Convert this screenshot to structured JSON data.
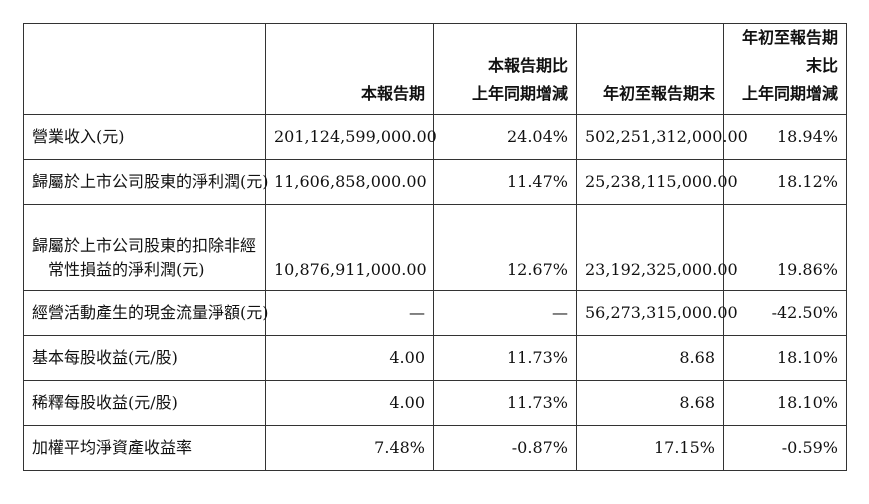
{
  "table": {
    "headers": [
      {
        "lines": [
          ""
        ]
      },
      {
        "lines": [
          "本報告期"
        ]
      },
      {
        "lines": [
          "本報告期比",
          "上年同期增減"
        ]
      },
      {
        "lines": [
          "年初至報告期末"
        ]
      },
      {
        "lines": [
          "年初至報告期末比",
          "上年同期增減"
        ]
      }
    ],
    "rows": [
      {
        "label": [
          "營業收入(元)"
        ],
        "values": [
          "201,124,599,000.00",
          "24.04%",
          "502,251,312,000.00",
          "18.94%"
        ]
      },
      {
        "label": [
          "歸屬於上市公司股東的淨利潤(元)"
        ],
        "values": [
          "11,606,858,000.00",
          "11.47%",
          "25,238,115,000.00",
          "18.12%"
        ]
      },
      {
        "label": [
          "歸屬於上市公司股東的扣除非經",
          "常性損益的淨利潤(元)"
        ],
        "values": [
          "10,876,911,000.00",
          "12.67%",
          "23,192,325,000.00",
          "19.86%"
        ]
      },
      {
        "label": [
          "經營活動產生的現金流量淨額(元)"
        ],
        "values": [
          "—",
          "—",
          "56,273,315,000.00",
          "-42.50%"
        ]
      },
      {
        "label": [
          "基本每股收益(元/股)"
        ],
        "values": [
          "4.00",
          "11.73%",
          "8.68",
          "18.10%"
        ]
      },
      {
        "label": [
          "稀釋每股收益(元/股)"
        ],
        "values": [
          "4.00",
          "11.73%",
          "8.68",
          "18.10%"
        ]
      },
      {
        "label": [
          "加權平均淨資產收益率"
        ],
        "values": [
          "7.48%",
          "-0.87%",
          "17.15%",
          "-0.59%"
        ]
      }
    ]
  }
}
